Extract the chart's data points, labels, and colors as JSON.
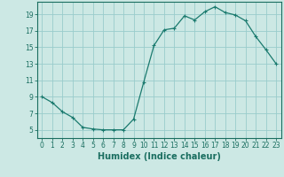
{
  "x": [
    0,
    1,
    2,
    3,
    4,
    5,
    6,
    7,
    8,
    9,
    10,
    11,
    12,
    13,
    14,
    15,
    16,
    17,
    18,
    19,
    20,
    21,
    22,
    23
  ],
  "y": [
    9.0,
    8.3,
    7.2,
    6.5,
    5.3,
    5.1,
    5.0,
    5.0,
    5.0,
    6.3,
    10.8,
    15.2,
    17.1,
    17.3,
    18.8,
    18.3,
    19.3,
    19.9,
    19.2,
    18.9,
    18.2,
    16.3,
    14.7,
    13.0
  ],
  "line_color": "#1a7a6e",
  "marker": "+",
  "marker_size": 3,
  "marker_linewidth": 0.8,
  "bg_color": "#cce8e4",
  "grid_color": "#99cccc",
  "xlabel": "Humidex (Indice chaleur)",
  "xlim": [
    -0.5,
    23.5
  ],
  "ylim": [
    4.0,
    20.5
  ],
  "yticks": [
    5,
    7,
    9,
    11,
    13,
    15,
    17,
    19
  ],
  "xticks": [
    0,
    1,
    2,
    3,
    4,
    5,
    6,
    7,
    8,
    9,
    10,
    11,
    12,
    13,
    14,
    15,
    16,
    17,
    18,
    19,
    20,
    21,
    22,
    23
  ],
  "xtick_labels": [
    "0",
    "1",
    "2",
    "3",
    "4",
    "5",
    "6",
    "7",
    "8",
    "9",
    "10",
    "11",
    "12",
    "13",
    "14",
    "15",
    "16",
    "17",
    "18",
    "19",
    "20",
    "21",
    "22",
    "23"
  ],
  "tick_color": "#1a6e60",
  "label_fontsize": 5.5,
  "xlabel_fontsize": 7,
  "line_width": 0.9
}
